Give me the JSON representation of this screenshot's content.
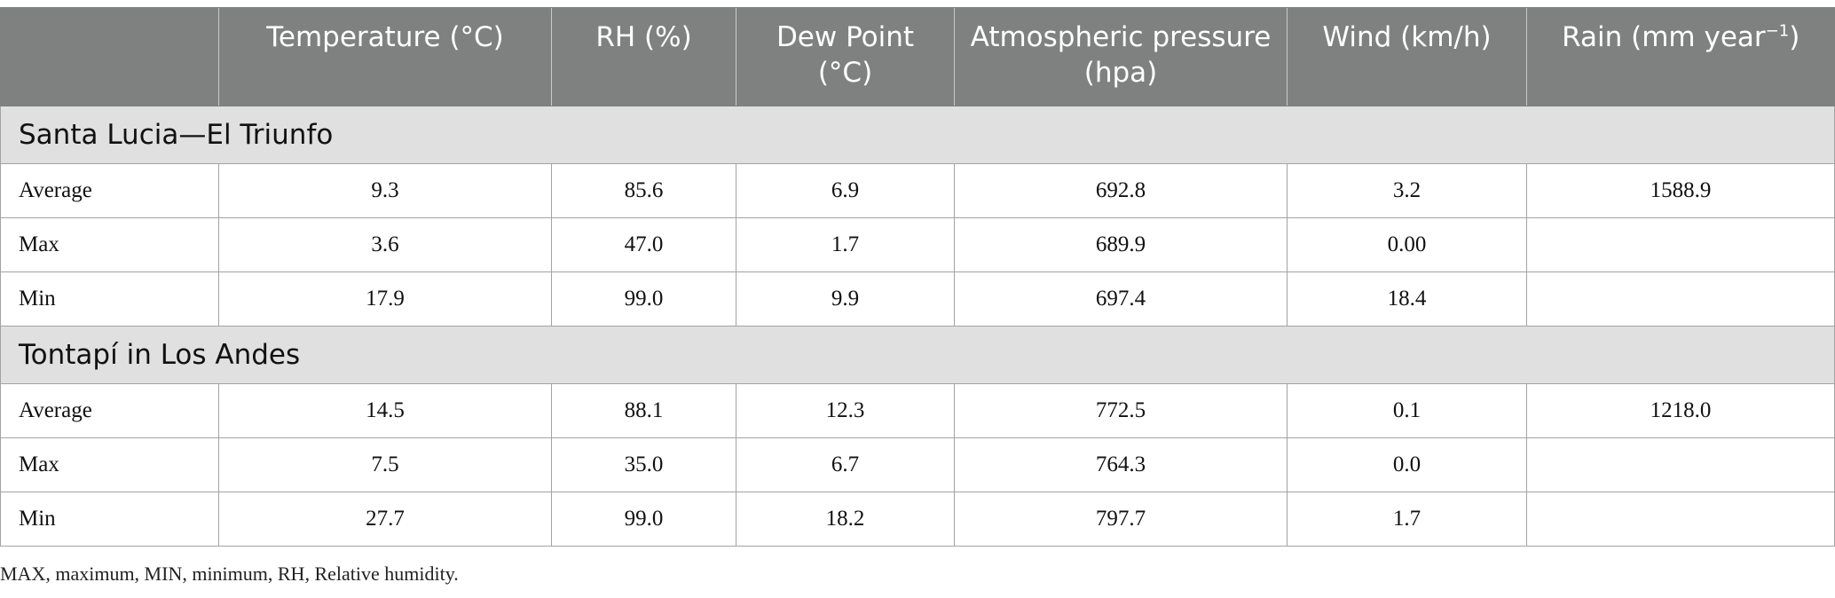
{
  "headers": [
    "",
    "Temperature (°C)",
    "RH (%)",
    "Dew Point (°C)",
    "Atmospheric pressure (hpa)",
    "Wind (km/h)",
    "Rain (mm year"
  ],
  "rain_unit_sup": "−1",
  "rain_unit_close": ")",
  "sections": [
    {
      "title": "Santa Lucia—El Triunfo",
      "rows": [
        [
          "Average",
          "9.3",
          "85.6",
          "6.9",
          "692.8",
          "3.2",
          "1588.9"
        ],
        [
          "Max",
          "3.6",
          "47.0",
          "1.7",
          "689.9",
          "0.00",
          ""
        ],
        [
          "Min",
          "17.9",
          "99.0",
          "9.9",
          "697.4",
          "18.4",
          ""
        ]
      ]
    },
    {
      "title": "Tontapí in Los Andes",
      "rows": [
        [
          "Average",
          "14.5",
          "88.1",
          "12.3",
          "772.5",
          "0.1",
          "1218.0"
        ],
        [
          "Max",
          "7.5",
          "35.0",
          "6.7",
          "764.3",
          "0.0",
          ""
        ],
        [
          "Min",
          "27.7",
          "99.0",
          "18.2",
          "797.7",
          "1.7",
          ""
        ]
      ]
    }
  ],
  "footnote": "MAX, maximum, MIN, minimum, RH, Relative humidity."
}
